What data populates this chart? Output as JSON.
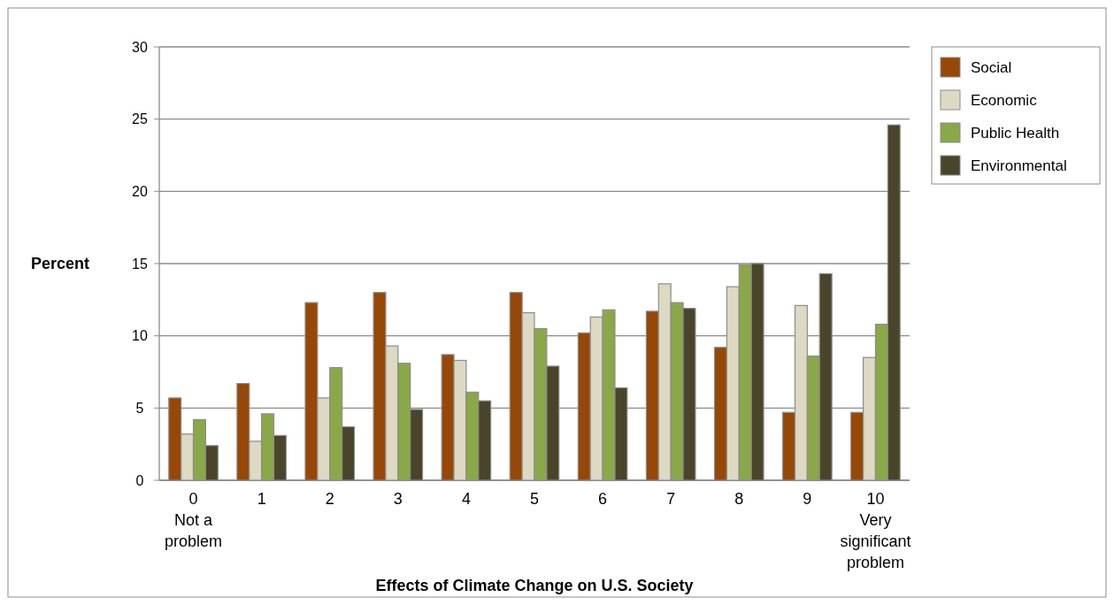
{
  "chart_data": {
    "type": "bar",
    "xlabel": "Effects of Climate Change on U.S. Society",
    "ylabel": "Percent",
    "categories": [
      "0\nNot a\nproblem",
      "1",
      "2",
      "3",
      "4",
      "5",
      "6",
      "7",
      "8",
      "9",
      "10\nVery\nsignificant\nproblem"
    ],
    "series": [
      {
        "name": "Social",
        "color": "#974706",
        "values": [
          5.7,
          6.7,
          12.3,
          13.0,
          8.7,
          13.0,
          10.2,
          11.7,
          9.2,
          4.7,
          4.7
        ]
      },
      {
        "name": "Economic",
        "color": "#ddd9c3",
        "values": [
          3.2,
          2.7,
          5.7,
          9.3,
          8.3,
          11.6,
          11.3,
          13.6,
          13.4,
          12.1,
          8.5
        ]
      },
      {
        "name": "Public Health",
        "color": "#8aa847",
        "values": [
          4.2,
          4.6,
          7.8,
          8.1,
          6.1,
          10.5,
          11.8,
          12.3,
          14.9,
          8.6,
          10.8
        ]
      },
      {
        "name": "Environmental",
        "color": "#4a442a",
        "values": [
          2.4,
          3.1,
          3.7,
          4.9,
          5.5,
          7.9,
          6.4,
          11.9,
          15.0,
          14.3,
          24.6
        ]
      }
    ],
    "ylim": [
      0,
      30
    ],
    "yticks": [
      0,
      5,
      10,
      15,
      20,
      25,
      30
    ],
    "grid": "y",
    "legend": "top right"
  }
}
